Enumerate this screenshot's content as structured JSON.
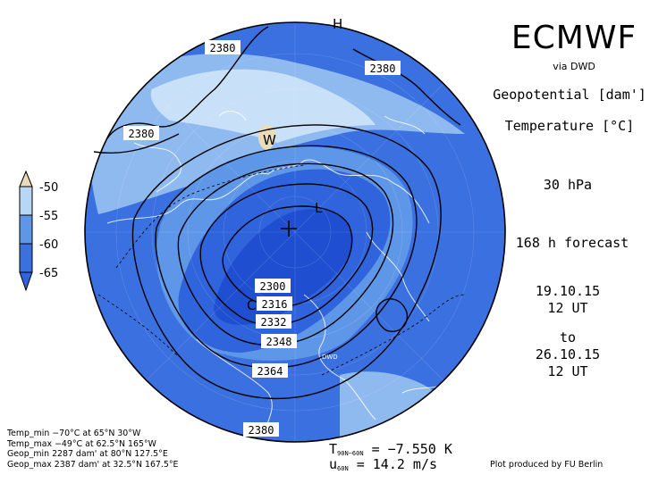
{
  "header": {
    "brand": "ECMWF",
    "source": "via DWD",
    "field1": "Geopotential [dam']",
    "field2": "Temperature [°C]",
    "level": "30 hPa",
    "forecast": "168 h forecast",
    "init_date": "19.10.15",
    "init_time": "12 UT",
    "to": "to",
    "valid_date": "26.10.15",
    "valid_time": "12 UT"
  },
  "legend": {
    "levels": [
      {
        "value": "-50",
        "color": "#eadcbb"
      },
      {
        "value": "-55",
        "color": "#b8d7f4"
      },
      {
        "value": "-60",
        "color": "#5f97e8"
      },
      {
        "value": "-65",
        "color": "#2f64dc"
      }
    ]
  },
  "map": {
    "pressure_labels": [
      "2380",
      "2380",
      "2380",
      "2300",
      "2316",
      "2332",
      "2348",
      "2364",
      "2380"
    ],
    "markers": {
      "high": "H",
      "low": "L",
      "warm": "W",
      "cold": "C",
      "station": "DWD"
    },
    "colors": {
      "coldest": "#1f4fd0",
      "cold": "#3a70e0",
      "mid": "#5f97e8",
      "warm": "#8fbaf0",
      "warmest": "#c8e0f8",
      "spot": "#eadcbb"
    }
  },
  "stats": {
    "temp_min": "Temp_min −70°C at 65°N 30°W",
    "temp_max": "Temp_max −49°C at 62.5°N 165°W",
    "geop_min": "Geop_min 2287 dam' at 80°N 127.5°E",
    "geop_max": "Geop_max 2387 dam' at 32.5°N 167.5°E"
  },
  "means": {
    "t_symbol": "T",
    "t_sub": "90N−60N",
    "t_value": "= −7.550 K",
    "u_symbol": "u",
    "u_sub": "60N",
    "u_value": "= 14.2 m/s"
  },
  "credit": "Plot produced by FU Berlin"
}
